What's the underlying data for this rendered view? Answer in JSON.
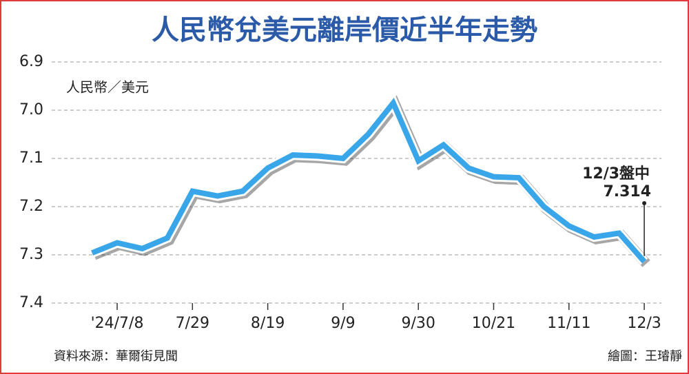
{
  "chart_data": {
    "type": "line",
    "title": "人民幣兌美元離岸價近半年走勢",
    "y_label": "人民幣／美元",
    "annotation": "12/3盤中",
    "source": "資料來源：華爾街見聞",
    "credit": "繪圖：王璿靜",
    "categories": [
      null,
      "'24/7/8",
      null,
      null,
      "7/29",
      null,
      null,
      "8/19",
      null,
      null,
      "9/9",
      null,
      null,
      "9/30",
      null,
      null,
      "10/21",
      null,
      null,
      "11/11",
      null,
      null,
      "12/3"
    ],
    "series": [
      {
        "name": "人民幣／美元",
        "color": "#3aa6ea",
        "values": [
          7.296,
          7.275,
          7.287,
          7.265,
          7.168,
          7.178,
          7.168,
          7.12,
          7.093,
          7.095,
          7.1,
          7.05,
          6.985,
          7.105,
          7.072,
          7.12,
          7.138,
          7.14,
          7.2,
          7.24,
          7.263,
          7.255,
          7.314
        ]
      }
    ],
    "ylim": [
      6.9,
      7.4
    ],
    "inverted": true,
    "yticks": [
      6.9,
      {
        "value": 7,
        "label": "7.0"
      },
      7.1,
      7.2,
      7.3,
      7.4
    ],
    "grid": true
  }
}
